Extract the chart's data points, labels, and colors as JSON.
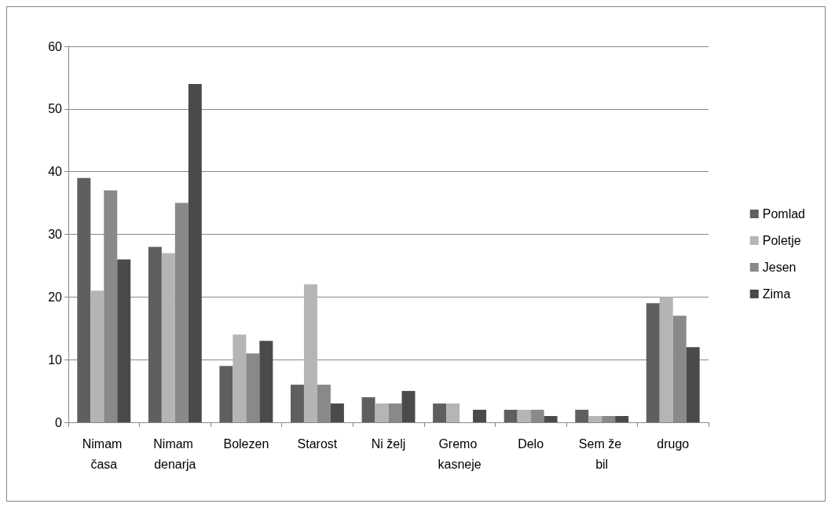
{
  "chart_data": {
    "type": "bar",
    "categories": [
      "Nimam časa",
      "Nimam denarja",
      "Bolezen",
      "Starost",
      "Ni želj",
      "Gremo kasneje",
      "Delo",
      "Sem že bil",
      "drugo"
    ],
    "series": [
      {
        "name": "Pomlad",
        "color": "#5f5f5f",
        "values": [
          39,
          28,
          9,
          6,
          4,
          3,
          2,
          2,
          19
        ]
      },
      {
        "name": "Poletje",
        "color": "#b5b5b5",
        "values": [
          21,
          27,
          14,
          22,
          3,
          3,
          2,
          1,
          20
        ]
      },
      {
        "name": "Jesen",
        "color": "#898989",
        "values": [
          37,
          35,
          11,
          6,
          3,
          0,
          2,
          1,
          17
        ]
      },
      {
        "name": "Zima",
        "color": "#4a4a4a",
        "values": [
          26,
          54,
          13,
          3,
          5,
          2,
          1,
          1,
          12
        ]
      }
    ],
    "ylim": [
      0,
      60
    ],
    "yticks": [
      0,
      10,
      20,
      30,
      40,
      50,
      60
    ],
    "grid": "y",
    "legend": "right"
  }
}
